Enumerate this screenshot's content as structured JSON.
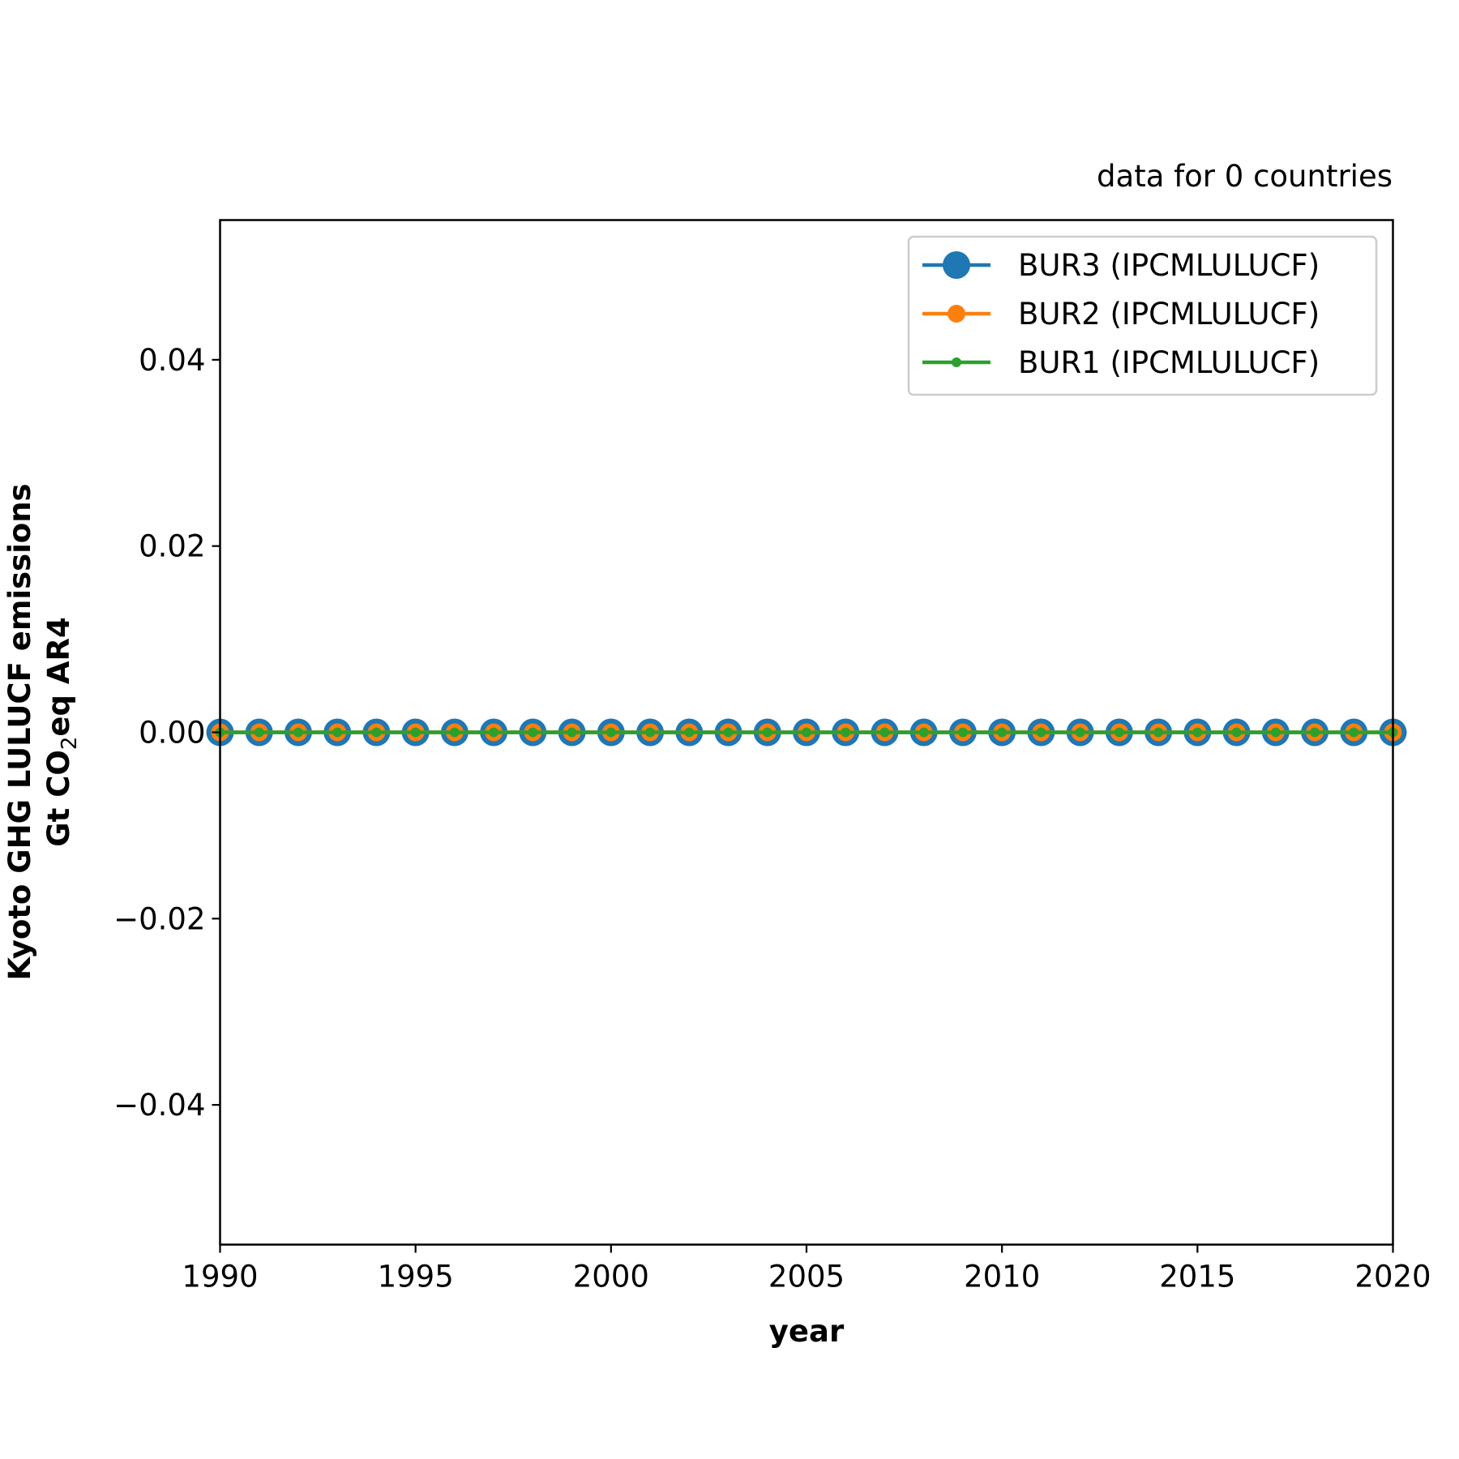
{
  "chart_data": {
    "type": "line",
    "title": "",
    "corner_note": "data for 0 countries",
    "xlabel": "year",
    "ylabel_line1": "Kyoto GHG LULUCF emissions",
    "ylabel_line2_prefix": "Gt CO",
    "ylabel_line2_sub": "2",
    "ylabel_line2_suffix": "eq AR4",
    "xlim": [
      1990,
      2020
    ],
    "ylim": [
      -0.055,
      0.055
    ],
    "grid": false,
    "legend_position": "top-right",
    "x_ticks": [
      1990,
      1995,
      2000,
      2005,
      2010,
      2015,
      2020
    ],
    "x_tick_labels": [
      "1990",
      "1995",
      "2000",
      "2005",
      "2010",
      "2015",
      "2020"
    ],
    "y_ticks": [
      -0.04,
      -0.02,
      0.0,
      0.02,
      0.04
    ],
    "y_tick_labels": [
      "−0.04",
      "−0.02",
      "0.00",
      "0.02",
      "0.04"
    ],
    "x": [
      1990,
      1991,
      1992,
      1993,
      1994,
      1995,
      1996,
      1997,
      1998,
      1999,
      2000,
      2001,
      2002,
      2003,
      2004,
      2005,
      2006,
      2007,
      2008,
      2009,
      2010,
      2011,
      2012,
      2013,
      2014,
      2015,
      2016,
      2017,
      2018,
      2019,
      2020
    ],
    "series": [
      {
        "name": "BUR3 (IPCMLULUCF)",
        "color": "#1f77b4",
        "marker": "large-circle",
        "values": [
          0,
          0,
          0,
          0,
          0,
          0,
          0,
          0,
          0,
          0,
          0,
          0,
          0,
          0,
          0,
          0,
          0,
          0,
          0,
          0,
          0,
          0,
          0,
          0,
          0,
          0,
          0,
          0,
          0,
          0,
          0
        ]
      },
      {
        "name": "BUR2 (IPCMLULUCF)",
        "color": "#ff7f0e",
        "marker": "medium-circle",
        "values": [
          0,
          0,
          0,
          0,
          0,
          0,
          0,
          0,
          0,
          0,
          0,
          0,
          0,
          0,
          0,
          0,
          0,
          0,
          0,
          0,
          0,
          0,
          0,
          0,
          0,
          0,
          0,
          0,
          0,
          0,
          0
        ]
      },
      {
        "name": "BUR1 (IPCMLULUCF)",
        "color": "#2ca02c",
        "marker": "small-circle",
        "values": [
          0,
          0,
          0,
          0,
          0,
          0,
          0,
          0,
          0,
          0,
          0,
          0,
          0,
          0,
          0,
          0,
          0,
          0,
          0,
          0,
          0,
          0,
          0,
          0,
          0,
          0,
          0,
          0,
          0,
          0,
          0
        ]
      }
    ]
  }
}
